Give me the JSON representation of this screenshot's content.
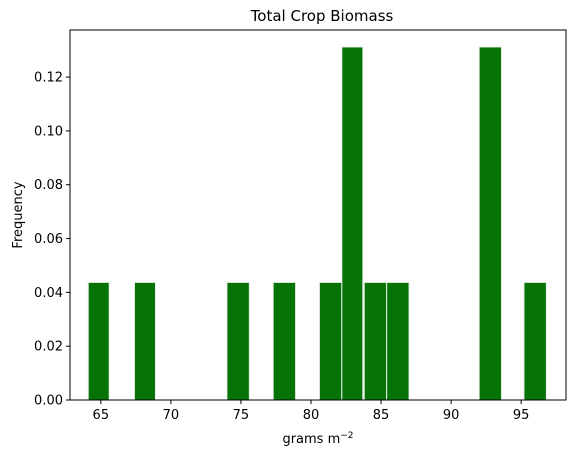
{
  "chart_data": {
    "type": "bar",
    "title": "Total Crop Biomass",
    "xlabel": "grams m",
    "xlabel_superscript": "−2",
    "ylabel": "Frequency",
    "x_ticks": [
      65,
      70,
      75,
      80,
      85,
      90,
      95
    ],
    "y_ticks": [
      "0.00",
      "0.02",
      "0.04",
      "0.06",
      "0.08",
      "0.10",
      "0.12"
    ],
    "xlim": [
      62.8,
      98.2
    ],
    "ylim": [
      0,
      0.1375
    ],
    "bar_color": "#067306",
    "bar_edge_color": "#e8efe8",
    "bins": [
      {
        "x0": 64.1,
        "x1": 65.6,
        "value": 0.0437
      },
      {
        "x0": 67.4,
        "x1": 68.9,
        "value": 0.0437
      },
      {
        "x0": 74.0,
        "x1": 75.6,
        "value": 0.0437
      },
      {
        "x0": 77.3,
        "x1": 78.9,
        "value": 0.0437
      },
      {
        "x0": 80.6,
        "x1": 82.2,
        "value": 0.0437
      },
      {
        "x0": 82.2,
        "x1": 83.7,
        "value": 0.1312
      },
      {
        "x0": 83.8,
        "x1": 85.4,
        "value": 0.0437
      },
      {
        "x0": 85.4,
        "x1": 87.0,
        "value": 0.0437
      },
      {
        "x0": 92.0,
        "x1": 93.6,
        "value": 0.1312
      },
      {
        "x0": 95.2,
        "x1": 96.8,
        "value": 0.0437
      }
    ],
    "grid": false,
    "legend": "none"
  }
}
